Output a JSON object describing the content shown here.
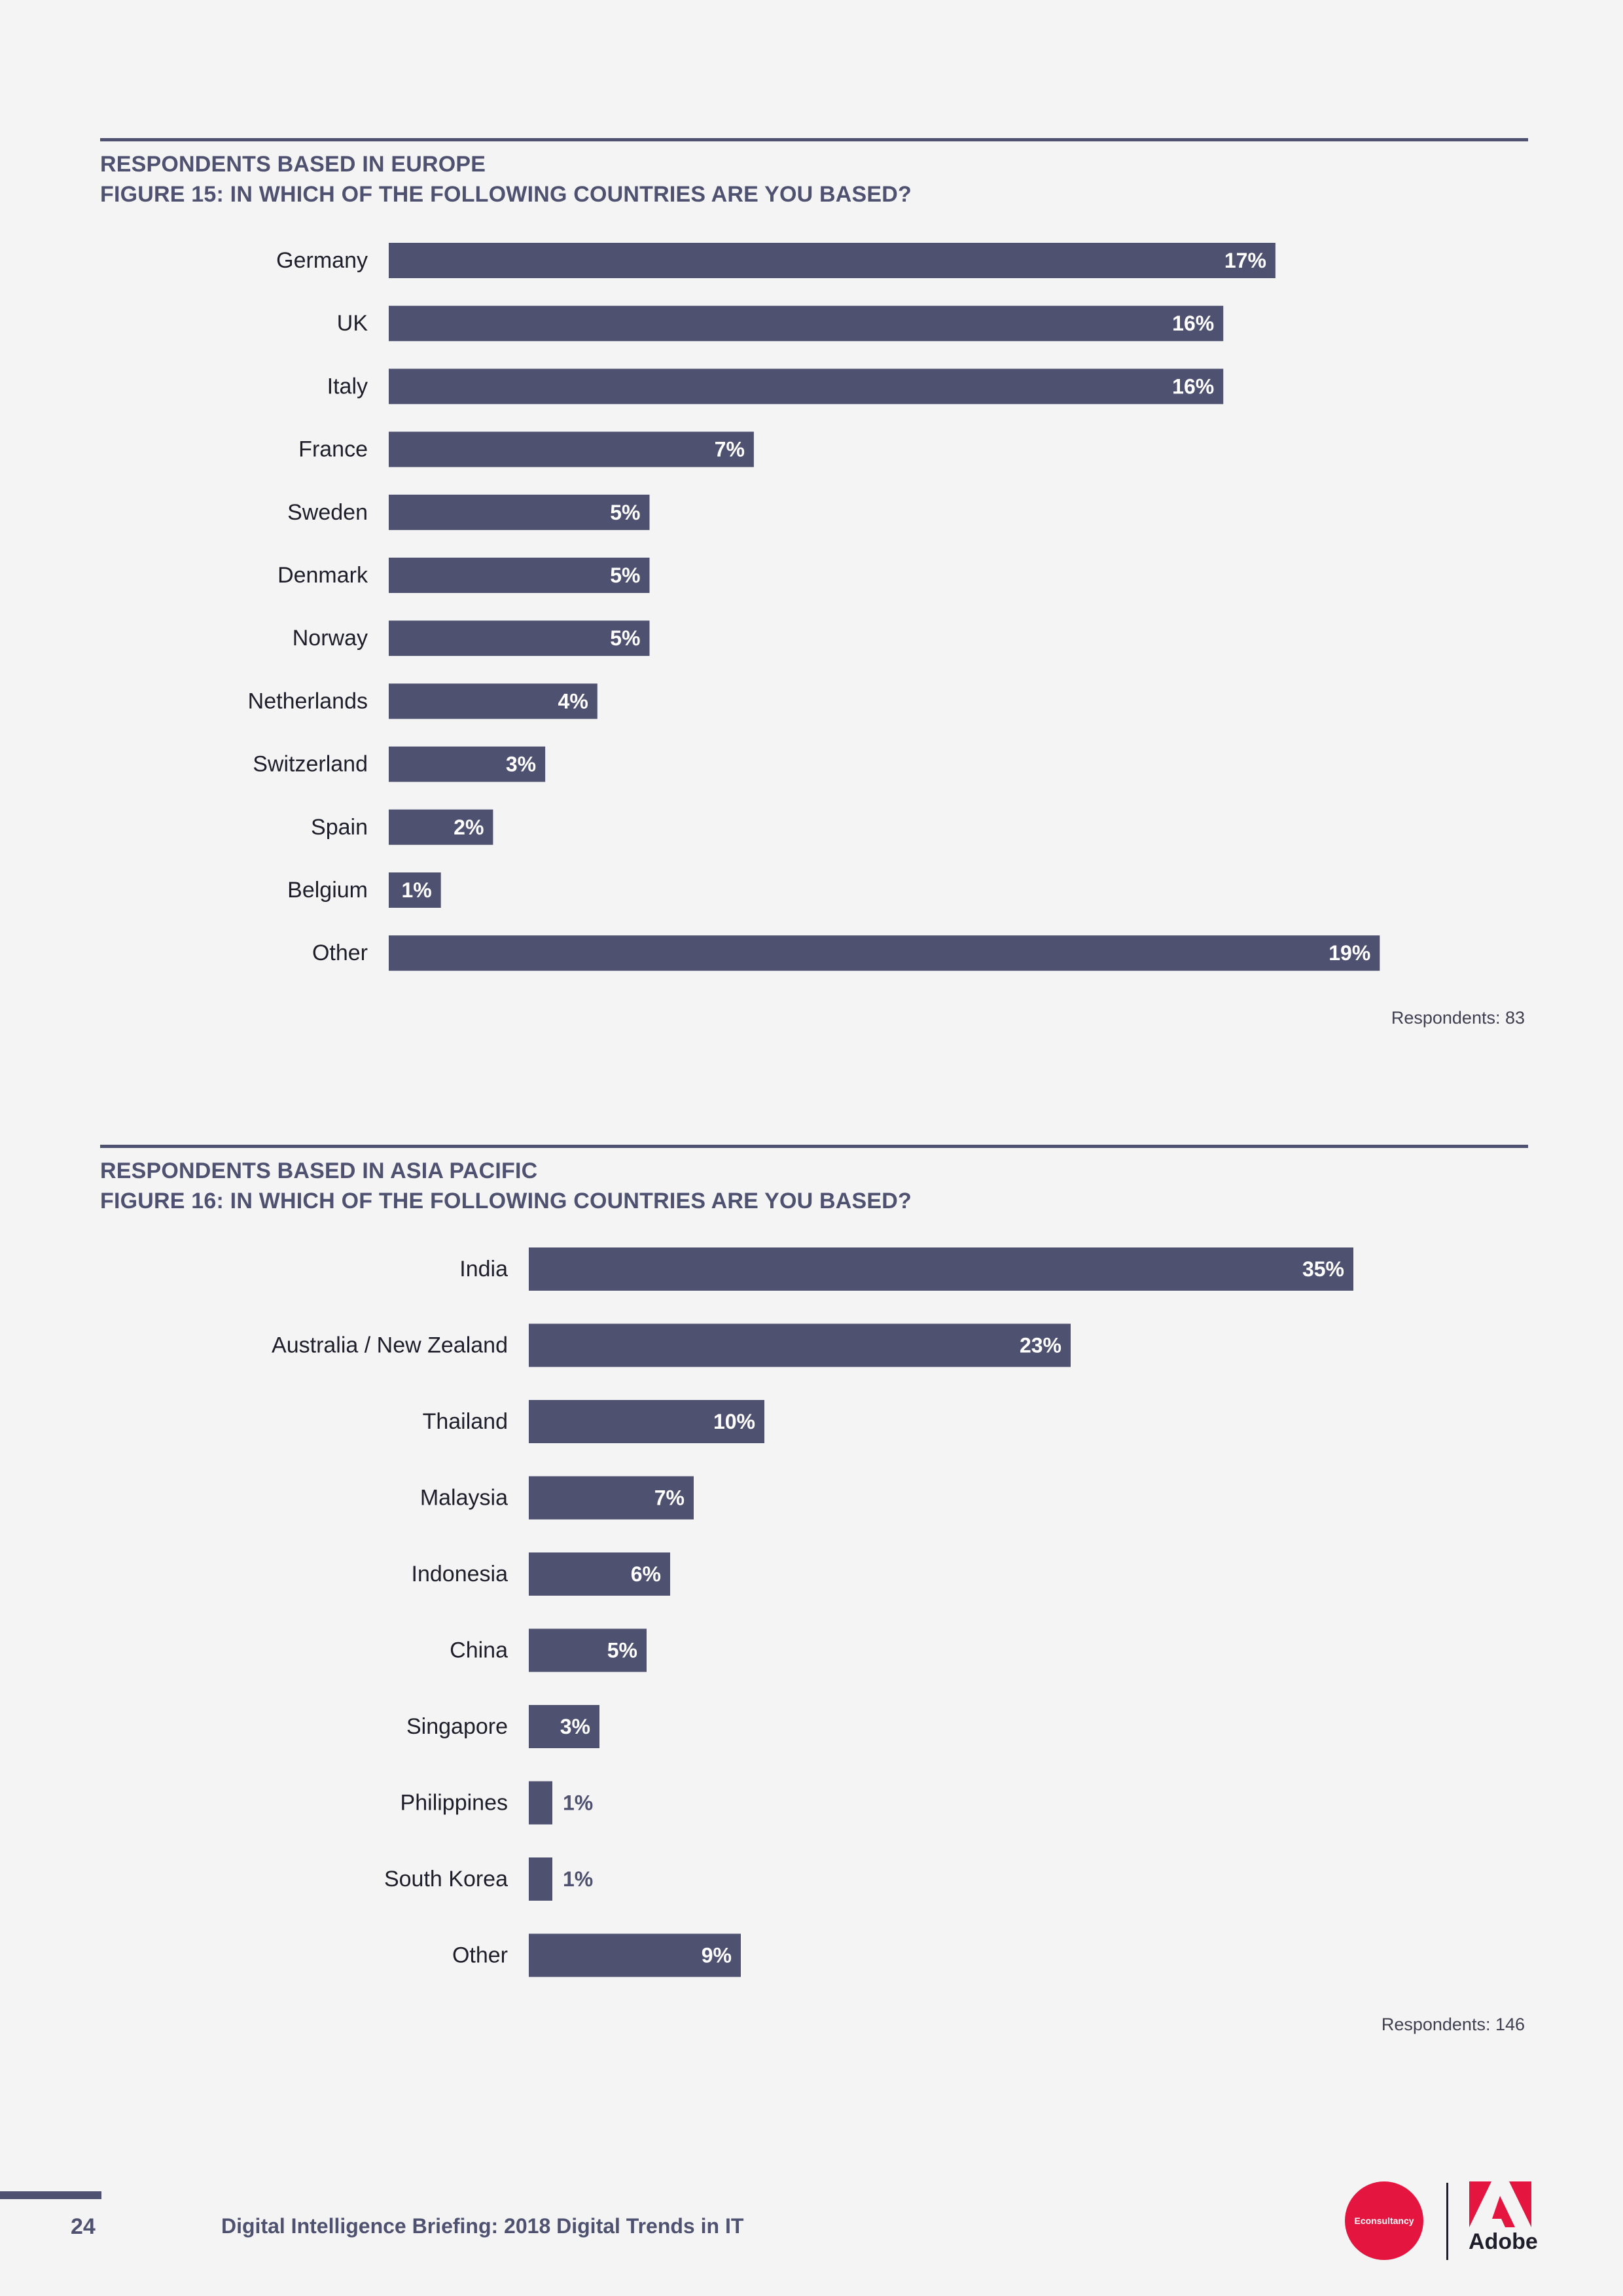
{
  "figure15": {
    "heading_line1": "RESPONDENTS BASED IN EUROPE",
    "heading_line2": "FIGURE 15: IN WHICH OF THE FOLLOWING COUNTRIES ARE YOU BASED?",
    "respondents": "Respondents: 83"
  },
  "figure16": {
    "heading_line1": "RESPONDENTS BASED IN ASIA PACIFIC",
    "heading_line2": "FIGURE 16: IN WHICH OF THE FOLLOWING COUNTRIES ARE YOU BASED?",
    "respondents": "Respondents: 146"
  },
  "chart_data": [
    {
      "type": "bar",
      "orientation": "horizontal",
      "categories": [
        "Germany",
        "UK",
        "Italy",
        "France",
        "Sweden",
        "Denmark",
        "Norway",
        "Netherlands",
        "Switzerland",
        "Spain",
        "Belgium",
        "Other"
      ],
      "values": [
        17,
        16,
        16,
        7,
        5,
        5,
        5,
        4,
        3,
        2,
        1,
        19
      ],
      "value_labels": [
        "17%",
        "16%",
        "16%",
        "7%",
        "5%",
        "5%",
        "5%",
        "4%",
        "3%",
        "2%",
        "1%",
        "19%"
      ],
      "bar_color": "#4f5170"
    },
    {
      "type": "bar",
      "orientation": "horizontal",
      "categories": [
        "India",
        "Australia / New Zealand",
        "Thailand",
        "Malaysia",
        "Indonesia",
        "China",
        "Singapore",
        "Philippines",
        "South Korea",
        "Other"
      ],
      "values": [
        35,
        23,
        10,
        7,
        6,
        5,
        3,
        1,
        1,
        9
      ],
      "value_labels": [
        "35%",
        "23%",
        "10%",
        "7%",
        "6%",
        "5%",
        "3%",
        "1%",
        "1%",
        "9%"
      ],
      "bar_color": "#4f5170"
    }
  ],
  "footer": {
    "page_number": "24",
    "title": "Digital Intelligence Briefing: 2018 Digital Trends in IT",
    "econsultancy_logo_text": "Econsultancy",
    "adobe_logo_text": "Adobe",
    "econsultancy_color": "#e4153f",
    "adobe_color": "#e4153f"
  }
}
